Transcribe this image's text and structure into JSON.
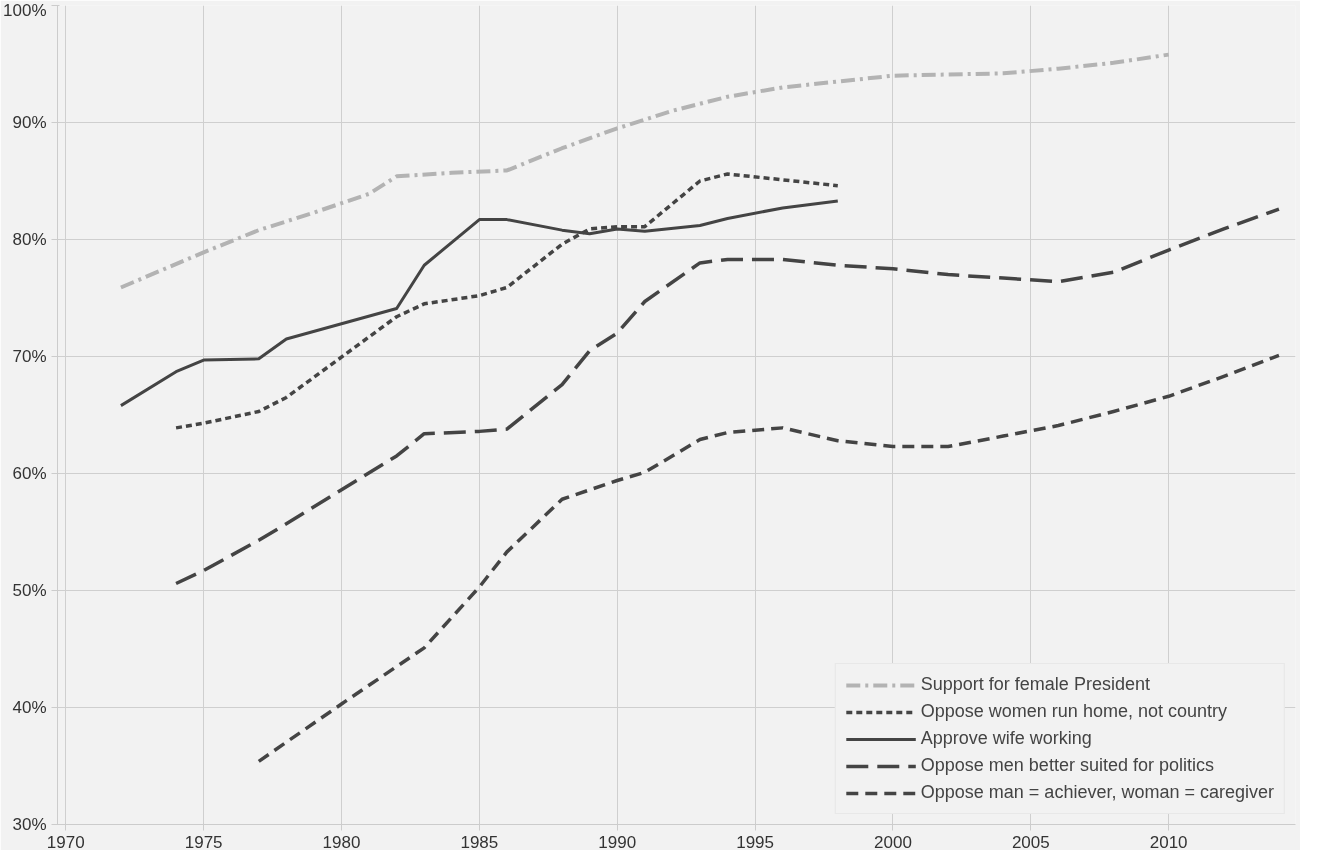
{
  "chart_data": {
    "type": "line",
    "xlim": [
      1969.7,
      2014.6
    ],
    "xticks": [
      1970,
      1975,
      1980,
      1985,
      1990,
      1995,
      2000,
      2005,
      2010
    ],
    "ylim": [
      30,
      100
    ],
    "yticks": [
      {
        "value": 30,
        "label": "30%"
      },
      {
        "value": 40,
        "label": "40%"
      },
      {
        "value": 50,
        "label": "50%"
      },
      {
        "value": 60,
        "label": "60%"
      },
      {
        "value": 70,
        "label": "70%"
      },
      {
        "value": 80,
        "label": "80%"
      },
      {
        "value": 90,
        "label": "90%"
      },
      {
        "value": 100,
        "label": "100%"
      }
    ],
    "grid": true,
    "legend": "bottom right",
    "marker": "none",
    "series": [
      {
        "name": "Support for female President",
        "color": "#b3b3b3",
        "line_style": "dashdot",
        "x": [
          1972,
          1975,
          1977,
          1979,
          1981,
          1982,
          1984,
          1986,
          1988,
          1990,
          1992,
          1994,
          1996,
          1998,
          2000,
          2002,
          2004,
          2006,
          2008,
          2010
        ],
        "values": [
          75.9,
          78.9,
          80.8,
          82.3,
          83.9,
          85.4,
          85.7,
          85.9,
          87.8,
          89.5,
          91,
          92.2,
          93,
          93.5,
          94,
          94.1,
          94.2,
          94.6,
          95.1,
          95.8
        ]
      },
      {
        "name": "Oppose women run home, not country",
        "color": "#444444",
        "line_style": "dotted",
        "x": [
          1974,
          1975,
          1977,
          1978,
          1982,
          1983,
          1985,
          1986,
          1988,
          1989,
          1990,
          1991,
          1993,
          1994,
          1996,
          1998
        ],
        "values": [
          63.9,
          64.3,
          65.3,
          66.5,
          73.4,
          74.5,
          75.2,
          75.9,
          79.6,
          80.9,
          81.1,
          81.1,
          85.0,
          85.6,
          85.1,
          84.6
        ]
      },
      {
        "name": "Approve wife working",
        "color": "#444444",
        "line_style": "solid",
        "x": [
          1972,
          1974,
          1975,
          1977,
          1978,
          1982,
          1983,
          1985,
          1986,
          1988,
          1989,
          1990,
          1991,
          1993,
          1994,
          1996,
          1998
        ],
        "values": [
          65.8,
          68.7,
          69.7,
          69.8,
          71.5,
          74.1,
          77.8,
          81.7,
          81.7,
          80.8,
          80.5,
          80.9,
          80.7,
          81.2,
          81.8,
          82.7,
          83.3
        ]
      },
      {
        "name": "Oppose men better suited for politics",
        "color": "#444444",
        "line_style": "longdash",
        "x": [
          1974,
          1975,
          1977,
          1978,
          1982,
          1983,
          1985,
          1986,
          1988,
          1989,
          1990,
          1991,
          1993,
          1994,
          1996,
          1998,
          2000,
          2002,
          2004,
          2006,
          2008,
          2010,
          2012,
          2014
        ],
        "values": [
          50.6,
          51.7,
          54.3,
          55.7,
          61.5,
          63.4,
          63.6,
          63.8,
          67.6,
          70.5,
          72,
          74.7,
          78,
          78.3,
          78.3,
          77.8,
          77.5,
          77,
          76.7,
          76.4,
          77.2,
          79.1,
          80.9,
          82.6
        ]
      },
      {
        "name": "Oppose man = achiever, woman = caregiver",
        "color": "#444444",
        "line_style": "dashed",
        "x": [
          1977,
          1980,
          1983,
          1985,
          1986,
          1988,
          1990,
          1991,
          1993,
          1994,
          1996,
          1998,
          2000,
          2002,
          2004,
          2006,
          2008,
          2010,
          2012,
          2014
        ],
        "values": [
          35.4,
          40.3,
          45.1,
          50.3,
          53.3,
          57.8,
          59.4,
          60.1,
          62.9,
          63.5,
          63.9,
          62.8,
          62.3,
          62.3,
          63.2,
          64.1,
          65.3,
          66.6,
          68.3,
          70.1
        ]
      }
    ]
  }
}
